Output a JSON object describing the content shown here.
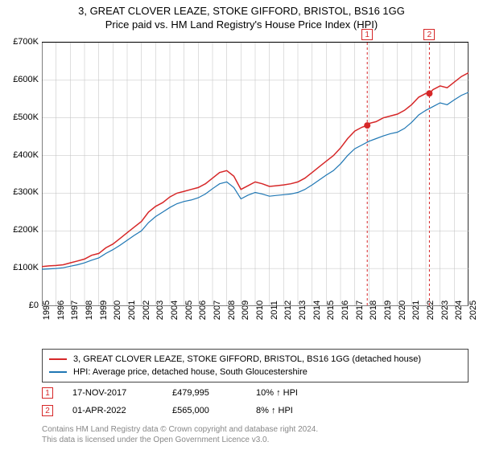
{
  "title": "3, GREAT CLOVER LEAZE, STOKE GIFFORD, BRISTOL, BS16 1GG",
  "subtitle": "Price paid vs. HM Land Registry's House Price Index (HPI)",
  "chart": {
    "type": "line",
    "background_color": "#ffffff",
    "axis_color": "#000000",
    "grid_color": "#bfbfbf",
    "ylim": [
      0,
      700000
    ],
    "ytick_step": 100000,
    "y_tick_labels": [
      "£0",
      "£100K",
      "£200K",
      "£300K",
      "£400K",
      "£500K",
      "£600K",
      "£700K"
    ],
    "xlim": [
      1995,
      2025
    ],
    "x_tick_labels": [
      "1995",
      "1996",
      "1997",
      "1998",
      "1999",
      "2000",
      "2001",
      "2002",
      "2003",
      "2004",
      "2005",
      "2006",
      "2007",
      "2008",
      "2009",
      "2010",
      "2011",
      "2012",
      "2013",
      "2014",
      "2015",
      "2016",
      "2017",
      "2018",
      "2019",
      "2020",
      "2021",
      "2022",
      "2023",
      "2024",
      "2025"
    ],
    "tick_fontsize": 11,
    "title_fontsize": 13,
    "series": [
      {
        "name": "property",
        "color": "#d62728",
        "line_width": 1.5,
        "data": [
          [
            1995,
            105000
          ],
          [
            1995.5,
            107000
          ],
          [
            1996,
            108000
          ],
          [
            1996.5,
            110000
          ],
          [
            1997,
            115000
          ],
          [
            1997.5,
            120000
          ],
          [
            1998,
            125000
          ],
          [
            1998.5,
            135000
          ],
          [
            1999,
            140000
          ],
          [
            1999.5,
            155000
          ],
          [
            2000,
            165000
          ],
          [
            2000.5,
            180000
          ],
          [
            2001,
            195000
          ],
          [
            2001.5,
            210000
          ],
          [
            2002,
            225000
          ],
          [
            2002.5,
            250000
          ],
          [
            2003,
            265000
          ],
          [
            2003.5,
            275000
          ],
          [
            2004,
            290000
          ],
          [
            2004.5,
            300000
          ],
          [
            2005,
            305000
          ],
          [
            2005.5,
            310000
          ],
          [
            2006,
            315000
          ],
          [
            2006.5,
            325000
          ],
          [
            2007,
            340000
          ],
          [
            2007.5,
            355000
          ],
          [
            2008,
            360000
          ],
          [
            2008.5,
            345000
          ],
          [
            2009,
            310000
          ],
          [
            2009.5,
            320000
          ],
          [
            2010,
            330000
          ],
          [
            2010.5,
            325000
          ],
          [
            2011,
            318000
          ],
          [
            2011.5,
            320000
          ],
          [
            2012,
            322000
          ],
          [
            2012.5,
            325000
          ],
          [
            2013,
            330000
          ],
          [
            2013.5,
            340000
          ],
          [
            2014,
            355000
          ],
          [
            2014.5,
            370000
          ],
          [
            2015,
            385000
          ],
          [
            2015.5,
            400000
          ],
          [
            2016,
            420000
          ],
          [
            2016.5,
            445000
          ],
          [
            2017,
            465000
          ],
          [
            2017.5,
            475000
          ],
          [
            2017.88,
            479995
          ],
          [
            2018,
            485000
          ],
          [
            2018.5,
            490000
          ],
          [
            2019,
            500000
          ],
          [
            2019.5,
            505000
          ],
          [
            2020,
            510000
          ],
          [
            2020.5,
            520000
          ],
          [
            2021,
            535000
          ],
          [
            2021.5,
            555000
          ],
          [
            2022,
            565000
          ],
          [
            2022.25,
            565000
          ],
          [
            2022.5,
            575000
          ],
          [
            2023,
            585000
          ],
          [
            2023.5,
            580000
          ],
          [
            2024,
            595000
          ],
          [
            2024.5,
            610000
          ],
          [
            2025,
            620000
          ]
        ]
      },
      {
        "name": "hpi",
        "color": "#1f77b4",
        "line_width": 1.2,
        "data": [
          [
            1995,
            98000
          ],
          [
            1995.5,
            99000
          ],
          [
            1996,
            100000
          ],
          [
            1996.5,
            102000
          ],
          [
            1997,
            106000
          ],
          [
            1997.5,
            110000
          ],
          [
            1998,
            115000
          ],
          [
            1998.5,
            122000
          ],
          [
            1999,
            128000
          ],
          [
            1999.5,
            140000
          ],
          [
            2000,
            150000
          ],
          [
            2000.5,
            162000
          ],
          [
            2001,
            175000
          ],
          [
            2001.5,
            188000
          ],
          [
            2002,
            200000
          ],
          [
            2002.5,
            222000
          ],
          [
            2003,
            238000
          ],
          [
            2003.5,
            250000
          ],
          [
            2004,
            262000
          ],
          [
            2004.5,
            272000
          ],
          [
            2005,
            278000
          ],
          [
            2005.5,
            282000
          ],
          [
            2006,
            288000
          ],
          [
            2006.5,
            298000
          ],
          [
            2007,
            312000
          ],
          [
            2007.5,
            325000
          ],
          [
            2008,
            330000
          ],
          [
            2008.5,
            315000
          ],
          [
            2009,
            285000
          ],
          [
            2009.5,
            295000
          ],
          [
            2010,
            302000
          ],
          [
            2010.5,
            298000
          ],
          [
            2011,
            292000
          ],
          [
            2011.5,
            294000
          ],
          [
            2012,
            296000
          ],
          [
            2012.5,
            298000
          ],
          [
            2013,
            302000
          ],
          [
            2013.5,
            310000
          ],
          [
            2014,
            322000
          ],
          [
            2014.5,
            335000
          ],
          [
            2015,
            348000
          ],
          [
            2015.5,
            360000
          ],
          [
            2016,
            378000
          ],
          [
            2016.5,
            400000
          ],
          [
            2017,
            418000
          ],
          [
            2017.5,
            428000
          ],
          [
            2018,
            438000
          ],
          [
            2018.5,
            445000
          ],
          [
            2019,
            452000
          ],
          [
            2019.5,
            458000
          ],
          [
            2020,
            462000
          ],
          [
            2020.5,
            472000
          ],
          [
            2021,
            488000
          ],
          [
            2021.5,
            508000
          ],
          [
            2022,
            520000
          ],
          [
            2022.5,
            530000
          ],
          [
            2023,
            540000
          ],
          [
            2023.5,
            535000
          ],
          [
            2024,
            548000
          ],
          [
            2024.5,
            560000
          ],
          [
            2025,
            568000
          ]
        ]
      }
    ],
    "marker_points": [
      {
        "id": "1",
        "x": 2017.88,
        "y": 479995,
        "color": "#d62728",
        "radius": 4
      },
      {
        "id": "2",
        "x": 2022.25,
        "y": 565000,
        "color": "#d62728",
        "radius": 4
      }
    ],
    "marker_vlines": [
      {
        "x": 2017.88,
        "color": "#d62728",
        "dash": "3,3",
        "badge": "1"
      },
      {
        "x": 2022.25,
        "color": "#d62728",
        "dash": "3,3",
        "badge": "2"
      }
    ]
  },
  "legend": {
    "border_color": "#444444",
    "fontsize": 11,
    "items": [
      {
        "color": "#d62728",
        "label": "3, GREAT CLOVER LEAZE, STOKE GIFFORD, BRISTOL, BS16 1GG (detached house)"
      },
      {
        "color": "#1f77b4",
        "label": "HPI: Average price, detached house, South Gloucestershire"
      }
    ]
  },
  "transactions": [
    {
      "badge": "1",
      "date": "17-NOV-2017",
      "price": "£479,995",
      "pct": "10% ↑ HPI"
    },
    {
      "badge": "2",
      "date": "01-APR-2022",
      "price": "£565,000",
      "pct": "8% ↑ HPI"
    }
  ],
  "license_line1": "Contains HM Land Registry data © Crown copyright and database right 2024.",
  "license_line2": "This data is licensed under the Open Government Licence v3.0."
}
